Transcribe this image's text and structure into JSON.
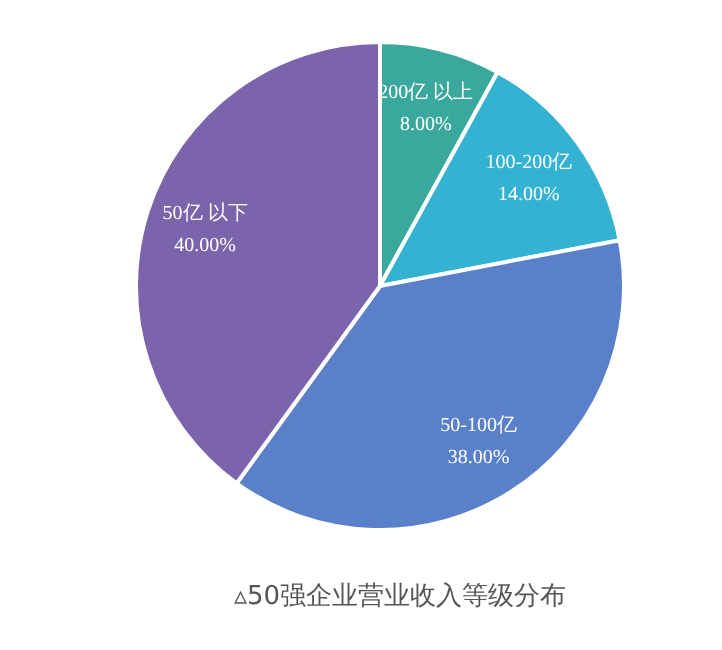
{
  "chart_data": {
    "type": "pie",
    "title": "▵50强企业营业收入等级分布",
    "categories": [
      "200亿 以上",
      "100-200亿",
      "50-100亿",
      "50亿 以下"
    ],
    "values": [
      8,
      14,
      38,
      40
    ],
    "value_labels": [
      "8.00%",
      "14.00%",
      "38.00%",
      "40.00%"
    ],
    "colors": [
      "#3aa89c",
      "#33b2d2",
      "#5a80c9",
      "#7b64ab"
    ]
  }
}
